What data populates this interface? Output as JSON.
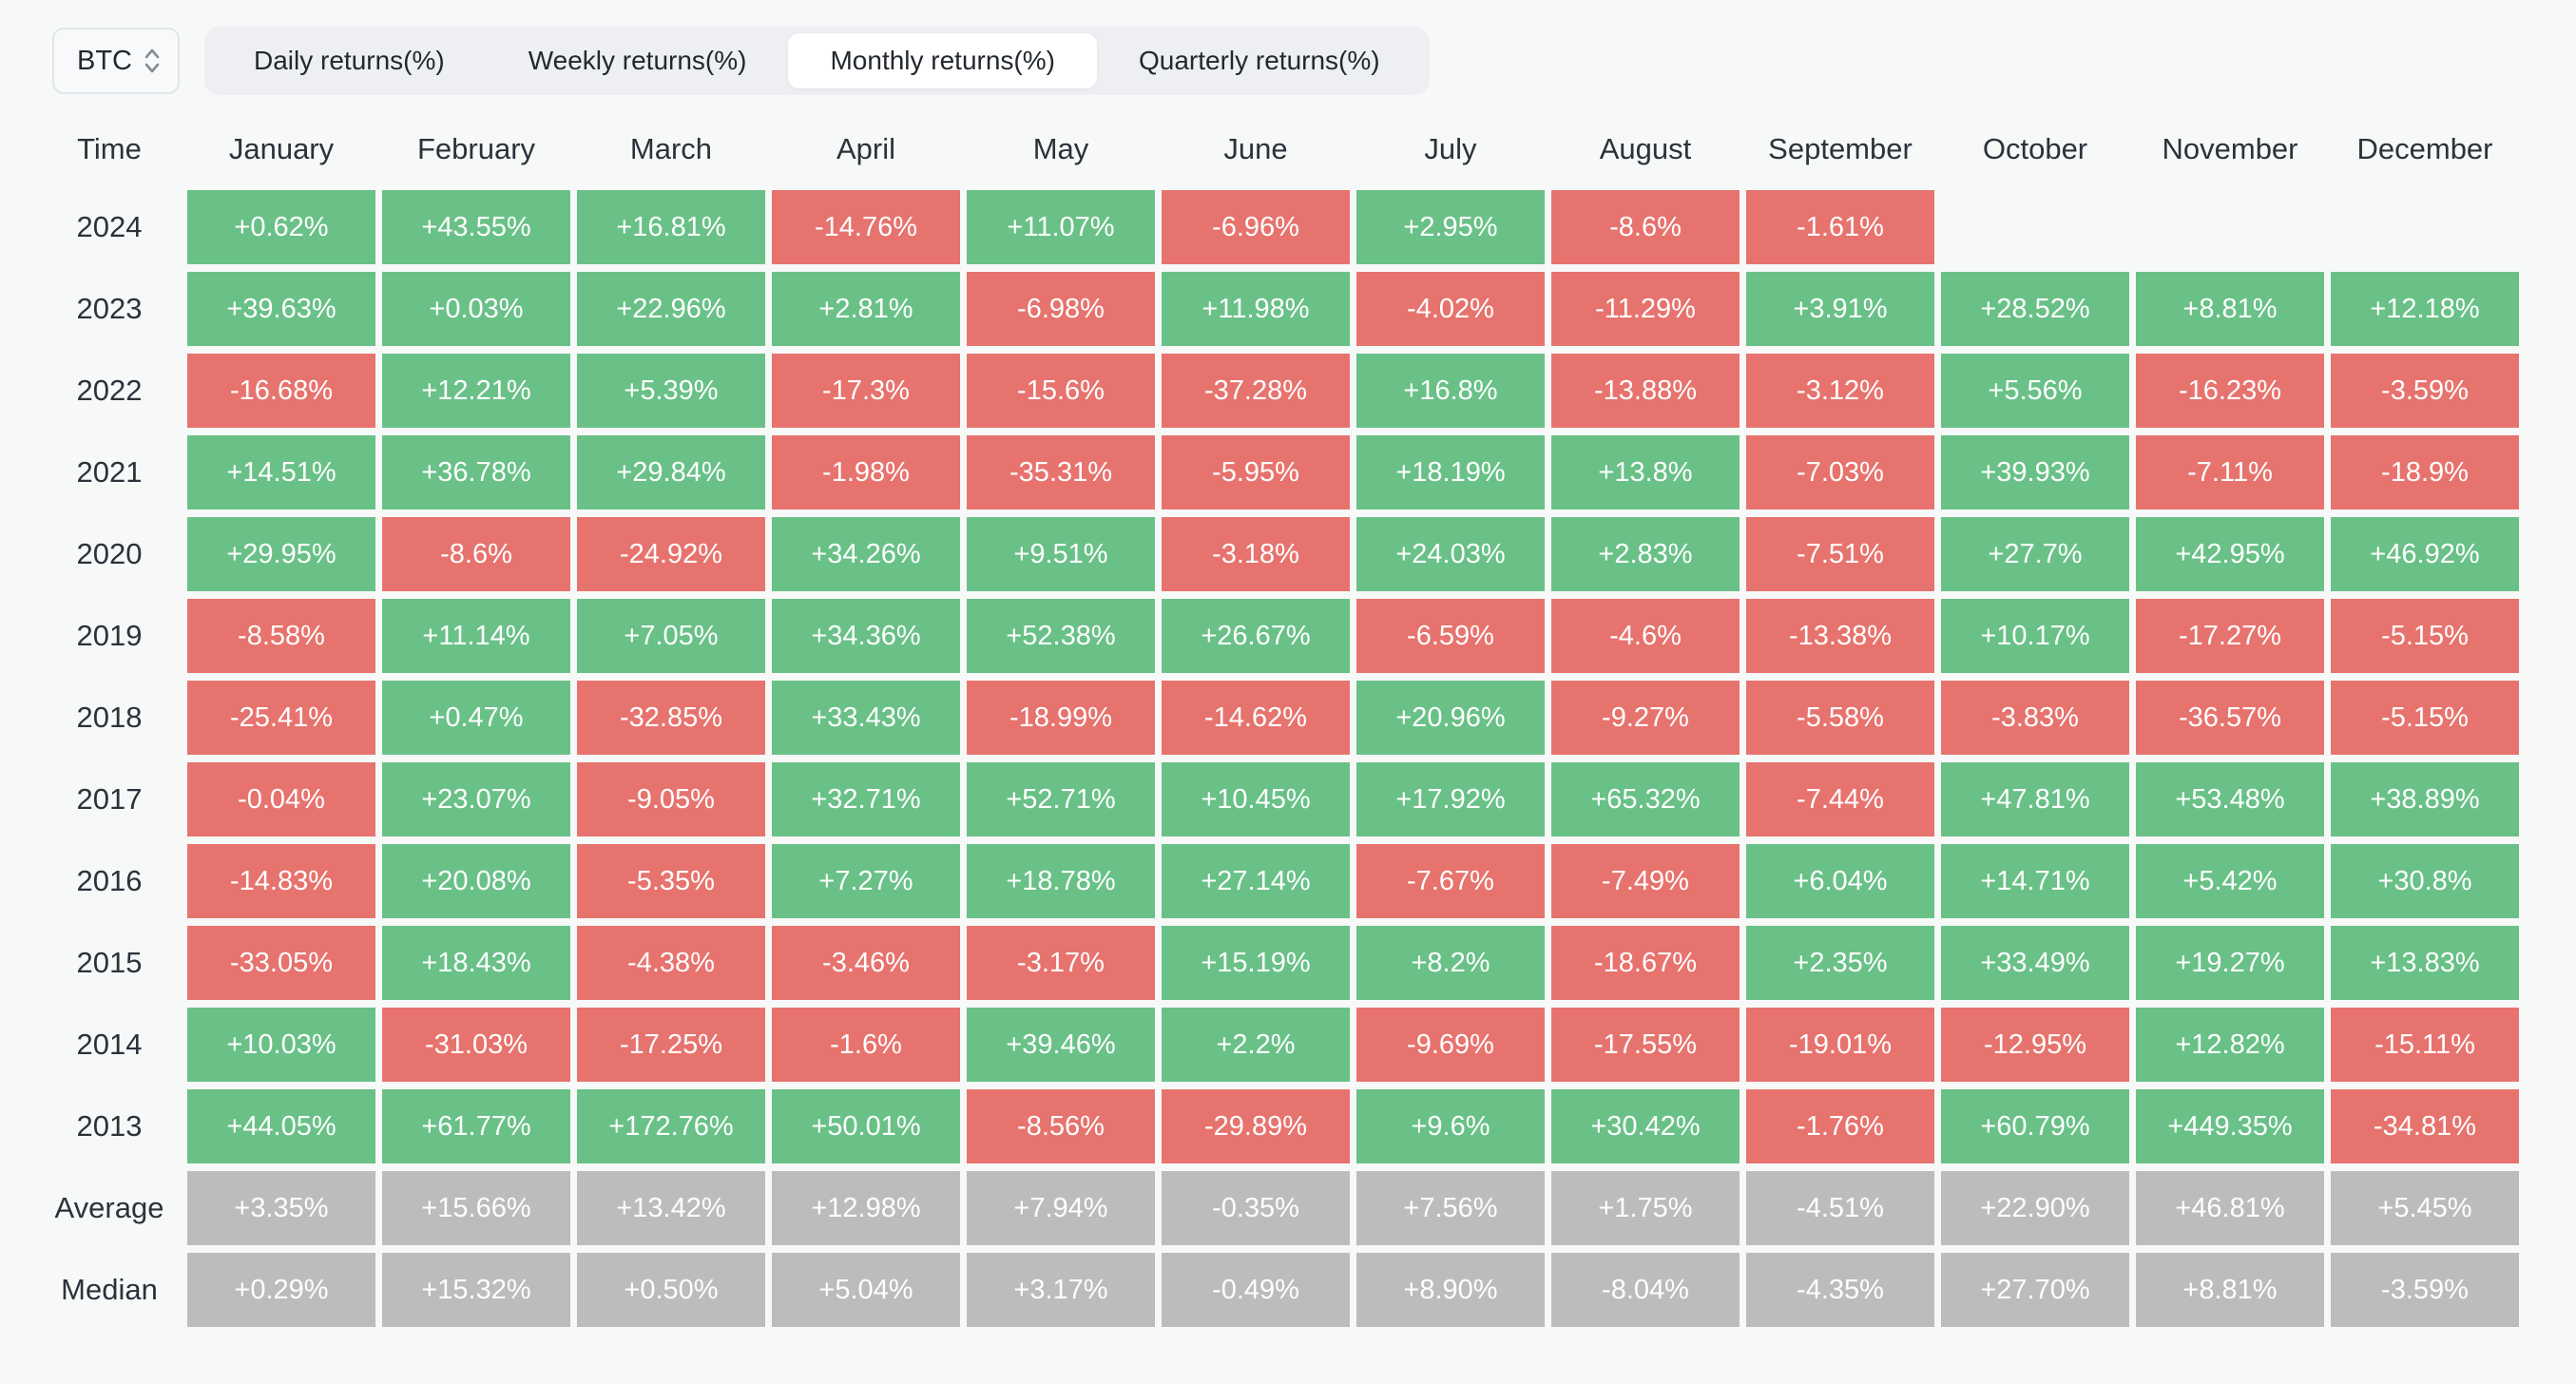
{
  "toolbar": {
    "symbol": "BTC",
    "tabs": [
      {
        "label": "Daily returns(%)",
        "active": false
      },
      {
        "label": "Weekly returns(%)",
        "active": false
      },
      {
        "label": "Monthly returns(%)",
        "active": true
      },
      {
        "label": "Quarterly returns(%)",
        "active": false
      }
    ]
  },
  "table": {
    "corner_label": "Time",
    "columns": [
      "January",
      "February",
      "March",
      "April",
      "May",
      "June",
      "July",
      "August",
      "September",
      "October",
      "November",
      "December"
    ],
    "rows": [
      {
        "label": "2024",
        "kind": "year",
        "values": [
          "+0.62%",
          "+43.55%",
          "+16.81%",
          "-14.76%",
          "+11.07%",
          "-6.96%",
          "+2.95%",
          "-8.6%",
          "-1.61%",
          "",
          "",
          ""
        ]
      },
      {
        "label": "2023",
        "kind": "year",
        "values": [
          "+39.63%",
          "+0.03%",
          "+22.96%",
          "+2.81%",
          "-6.98%",
          "+11.98%",
          "-4.02%",
          "-11.29%",
          "+3.91%",
          "+28.52%",
          "+8.81%",
          "+12.18%"
        ]
      },
      {
        "label": "2022",
        "kind": "year",
        "values": [
          "-16.68%",
          "+12.21%",
          "+5.39%",
          "-17.3%",
          "-15.6%",
          "-37.28%",
          "+16.8%",
          "-13.88%",
          "-3.12%",
          "+5.56%",
          "-16.23%",
          "-3.59%"
        ]
      },
      {
        "label": "2021",
        "kind": "year",
        "values": [
          "+14.51%",
          "+36.78%",
          "+29.84%",
          "-1.98%",
          "-35.31%",
          "-5.95%",
          "+18.19%",
          "+13.8%",
          "-7.03%",
          "+39.93%",
          "-7.11%",
          "-18.9%"
        ]
      },
      {
        "label": "2020",
        "kind": "year",
        "values": [
          "+29.95%",
          "-8.6%",
          "-24.92%",
          "+34.26%",
          "+9.51%",
          "-3.18%",
          "+24.03%",
          "+2.83%",
          "-7.51%",
          "+27.7%",
          "+42.95%",
          "+46.92%"
        ]
      },
      {
        "label": "2019",
        "kind": "year",
        "values": [
          "-8.58%",
          "+11.14%",
          "+7.05%",
          "+34.36%",
          "+52.38%",
          "+26.67%",
          "-6.59%",
          "-4.6%",
          "-13.38%",
          "+10.17%",
          "-17.27%",
          "-5.15%"
        ]
      },
      {
        "label": "2018",
        "kind": "year",
        "values": [
          "-25.41%",
          "+0.47%",
          "-32.85%",
          "+33.43%",
          "-18.99%",
          "-14.62%",
          "+20.96%",
          "-9.27%",
          "-5.58%",
          "-3.83%",
          "-36.57%",
          "-5.15%"
        ]
      },
      {
        "label": "2017",
        "kind": "year",
        "values": [
          "-0.04%",
          "+23.07%",
          "-9.05%",
          "+32.71%",
          "+52.71%",
          "+10.45%",
          "+17.92%",
          "+65.32%",
          "-7.44%",
          "+47.81%",
          "+53.48%",
          "+38.89%"
        ]
      },
      {
        "label": "2016",
        "kind": "year",
        "values": [
          "-14.83%",
          "+20.08%",
          "-5.35%",
          "+7.27%",
          "+18.78%",
          "+27.14%",
          "-7.67%",
          "-7.49%",
          "+6.04%",
          "+14.71%",
          "+5.42%",
          "+30.8%"
        ]
      },
      {
        "label": "2015",
        "kind": "year",
        "values": [
          "-33.05%",
          "+18.43%",
          "-4.38%",
          "-3.46%",
          "-3.17%",
          "+15.19%",
          "+8.2%",
          "-18.67%",
          "+2.35%",
          "+33.49%",
          "+19.27%",
          "+13.83%"
        ]
      },
      {
        "label": "2014",
        "kind": "year",
        "values": [
          "+10.03%",
          "-31.03%",
          "-17.25%",
          "-1.6%",
          "+39.46%",
          "+2.2%",
          "-9.69%",
          "-17.55%",
          "-19.01%",
          "-12.95%",
          "+12.82%",
          "-15.11%"
        ]
      },
      {
        "label": "2013",
        "kind": "year",
        "values": [
          "+44.05%",
          "+61.77%",
          "+172.76%",
          "+50.01%",
          "-8.56%",
          "-29.89%",
          "+9.6%",
          "+30.42%",
          "-1.76%",
          "+60.79%",
          "+449.35%",
          "-34.81%"
        ]
      },
      {
        "label": "Average",
        "kind": "summary",
        "values": [
          "+3.35%",
          "+15.66%",
          "+13.42%",
          "+12.98%",
          "+7.94%",
          "-0.35%",
          "+7.56%",
          "+1.75%",
          "-4.51%",
          "+22.90%",
          "+46.81%",
          "+5.45%"
        ]
      },
      {
        "label": "Median",
        "kind": "summary",
        "values": [
          "+0.29%",
          "+15.32%",
          "+0.50%",
          "+5.04%",
          "+3.17%",
          "-0.49%",
          "+8.90%",
          "-8.04%",
          "-4.35%",
          "+27.70%",
          "+8.81%",
          "-3.59%"
        ]
      }
    ]
  },
  "chart_data": {
    "type": "heatmap",
    "title": "BTC Monthly returns(%)",
    "columns": [
      "January",
      "February",
      "March",
      "April",
      "May",
      "June",
      "July",
      "August",
      "September",
      "October",
      "November",
      "December"
    ],
    "rows": [
      "2024",
      "2023",
      "2022",
      "2021",
      "2020",
      "2019",
      "2018",
      "2017",
      "2016",
      "2015",
      "2014",
      "2013",
      "Average",
      "Median"
    ],
    "values": [
      [
        0.62,
        43.55,
        16.81,
        -14.76,
        11.07,
        -6.96,
        2.95,
        -8.6,
        -1.61,
        null,
        null,
        null
      ],
      [
        39.63,
        0.03,
        22.96,
        2.81,
        -6.98,
        11.98,
        -4.02,
        -11.29,
        3.91,
        28.52,
        8.81,
        12.18
      ],
      [
        -16.68,
        12.21,
        5.39,
        -17.3,
        -15.6,
        -37.28,
        16.8,
        -13.88,
        -3.12,
        5.56,
        -16.23,
        -3.59
      ],
      [
        14.51,
        36.78,
        29.84,
        -1.98,
        -35.31,
        -5.95,
        18.19,
        13.8,
        -7.03,
        39.93,
        -7.11,
        -18.9
      ],
      [
        29.95,
        -8.6,
        -24.92,
        34.26,
        9.51,
        -3.18,
        24.03,
        2.83,
        -7.51,
        27.7,
        42.95,
        46.92
      ],
      [
        -8.58,
        11.14,
        7.05,
        34.36,
        52.38,
        26.67,
        -6.59,
        -4.6,
        -13.38,
        10.17,
        -17.27,
        -5.15
      ],
      [
        -25.41,
        0.47,
        -32.85,
        33.43,
        -18.99,
        -14.62,
        20.96,
        -9.27,
        -5.58,
        -3.83,
        -36.57,
        -5.15
      ],
      [
        -0.04,
        23.07,
        -9.05,
        32.71,
        52.71,
        10.45,
        17.92,
        65.32,
        -7.44,
        47.81,
        53.48,
        38.89
      ],
      [
        -14.83,
        20.08,
        -5.35,
        7.27,
        18.78,
        27.14,
        -7.67,
        -7.49,
        6.04,
        14.71,
        5.42,
        30.8
      ],
      [
        -33.05,
        18.43,
        -4.38,
        -3.46,
        -3.17,
        15.19,
        8.2,
        -18.67,
        2.35,
        33.49,
        19.27,
        13.83
      ],
      [
        10.03,
        -31.03,
        -17.25,
        -1.6,
        39.46,
        2.2,
        -9.69,
        -17.55,
        -19.01,
        -12.95,
        12.82,
        -15.11
      ],
      [
        44.05,
        61.77,
        172.76,
        50.01,
        -8.56,
        -29.89,
        9.6,
        30.42,
        -1.76,
        60.79,
        449.35,
        -34.81
      ],
      [
        3.35,
        15.66,
        13.42,
        12.98,
        7.94,
        -0.35,
        7.56,
        1.75,
        -4.51,
        22.9,
        46.81,
        5.45
      ],
      [
        0.29,
        15.32,
        0.5,
        5.04,
        3.17,
        -0.49,
        8.9,
        -8.04,
        -4.35,
        27.7,
        8.81,
        -3.59
      ]
    ],
    "legend_position": "none",
    "grid": false,
    "color_coding": "positive green, negative red, Average/Median rows gray"
  },
  "colors": {
    "positive": "#69c187",
    "negative": "#e7736e",
    "summary": "#bcbcbc",
    "background": "#f7f8f8",
    "tabbar_bg": "#edeff2",
    "active_tab_bg": "#ffffff",
    "text_dark": "#2b323a",
    "cell_text": "#ffffff"
  },
  "icons": {
    "symbol_selector_icon": "chevron-up-down-icon"
  }
}
